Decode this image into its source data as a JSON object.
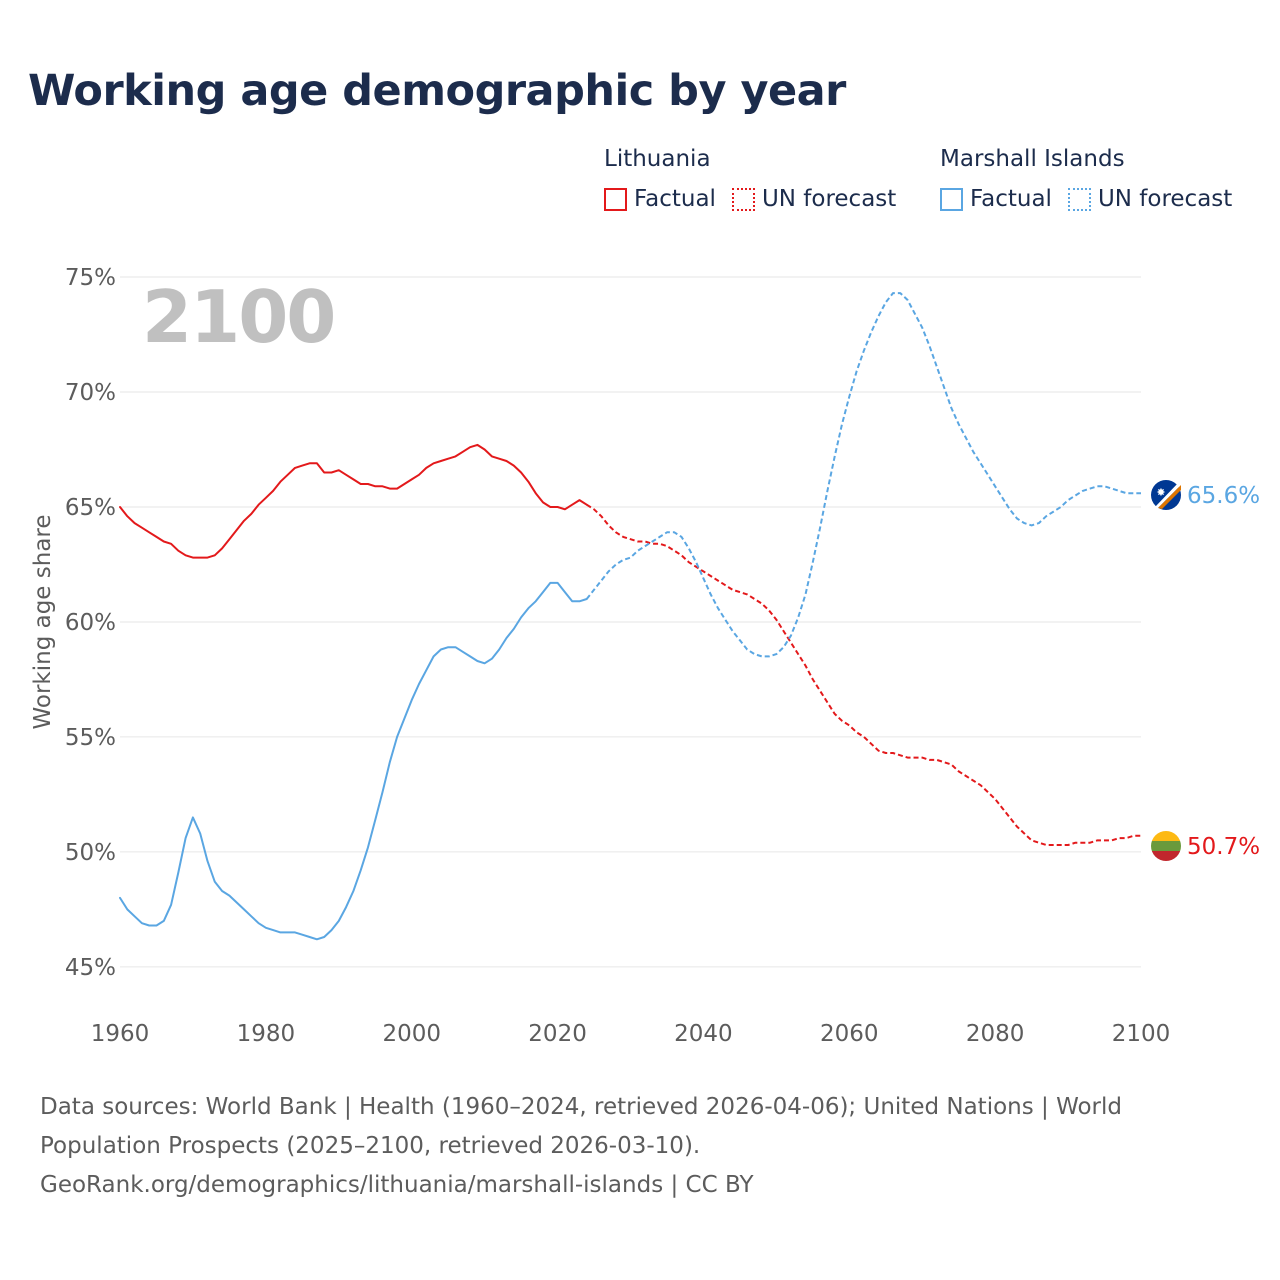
{
  "header": {
    "title": "Working age demographic by year"
  },
  "legend": [
    {
      "country": "Lithuania",
      "color": "#e3191b",
      "items": [
        {
          "label": "Factual",
          "style": "solid"
        },
        {
          "label": "UN forecast",
          "style": "dotted"
        }
      ]
    },
    {
      "country": "Marshall Islands",
      "color": "#5aa6e2",
      "items": [
        {
          "label": "Factual",
          "style": "solid"
        },
        {
          "label": "UN forecast",
          "style": "dotted"
        }
      ]
    }
  ],
  "footer": {
    "sources": "Data sources: World Bank | Health (1960–2024, retrieved 2026-04-06); United Nations | World Population Prospects (2025–2100, retrieved 2026-03-10).",
    "attribution": "GeoRank.org/demographics/lithuania/marshall-islands | CC BY"
  },
  "chart_data": {
    "type": "line",
    "title": "Working age demographic by year",
    "year_label": "2100",
    "xlabel": "",
    "ylabel": "Working age share",
    "xlim": [
      1960,
      2100
    ],
    "ylim": [
      44.3,
      75
    ],
    "x_ticks": [
      1960,
      1980,
      2000,
      2020,
      2040,
      2060,
      2080,
      2100
    ],
    "x_tick_labels": [
      "1960",
      "1980",
      "2000",
      "2020",
      "2040",
      "2060",
      "2080",
      "2100"
    ],
    "y_ticks": [
      45,
      50,
      55,
      60,
      65,
      70,
      75
    ],
    "y_tick_labels": [
      "45%",
      "50%",
      "55%",
      "60%",
      "65%",
      "70%",
      "75%"
    ],
    "grid": true,
    "series": [
      {
        "name": "Lithuania",
        "color": "#e3191b",
        "end_label": "50.7%",
        "factual": [
          [
            1960,
            65.0
          ],
          [
            1961,
            64.6
          ],
          [
            1962,
            64.3
          ],
          [
            1963,
            64.1
          ],
          [
            1964,
            63.9
          ],
          [
            1965,
            63.7
          ],
          [
            1966,
            63.5
          ],
          [
            1967,
            63.4
          ],
          [
            1968,
            63.1
          ],
          [
            1969,
            62.9
          ],
          [
            1970,
            62.8
          ],
          [
            1971,
            62.8
          ],
          [
            1972,
            62.8
          ],
          [
            1973,
            62.9
          ],
          [
            1974,
            63.2
          ],
          [
            1975,
            63.6
          ],
          [
            1976,
            64.0
          ],
          [
            1977,
            64.4
          ],
          [
            1978,
            64.7
          ],
          [
            1979,
            65.1
          ],
          [
            1980,
            65.4
          ],
          [
            1981,
            65.7
          ],
          [
            1982,
            66.1
          ],
          [
            1983,
            66.4
          ],
          [
            1984,
            66.7
          ],
          [
            1985,
            66.8
          ],
          [
            1986,
            66.9
          ],
          [
            1987,
            66.9
          ],
          [
            1988,
            66.5
          ],
          [
            1989,
            66.5
          ],
          [
            1990,
            66.6
          ],
          [
            1991,
            66.4
          ],
          [
            1992,
            66.2
          ],
          [
            1993,
            66.0
          ],
          [
            1994,
            66.0
          ],
          [
            1995,
            65.9
          ],
          [
            1996,
            65.9
          ],
          [
            1997,
            65.8
          ],
          [
            1998,
            65.8
          ],
          [
            1999,
            66.0
          ],
          [
            2000,
            66.2
          ],
          [
            2001,
            66.4
          ],
          [
            2002,
            66.7
          ],
          [
            2003,
            66.9
          ],
          [
            2004,
            67.0
          ],
          [
            2005,
            67.1
          ],
          [
            2006,
            67.2
          ],
          [
            2007,
            67.4
          ],
          [
            2008,
            67.6
          ],
          [
            2009,
            67.7
          ],
          [
            2010,
            67.5
          ],
          [
            2011,
            67.2
          ],
          [
            2012,
            67.1
          ],
          [
            2013,
            67.0
          ],
          [
            2014,
            66.8
          ],
          [
            2015,
            66.5
          ],
          [
            2016,
            66.1
          ],
          [
            2017,
            65.6
          ],
          [
            2018,
            65.2
          ],
          [
            2019,
            65.0
          ],
          [
            2020,
            65.0
          ],
          [
            2021,
            64.9
          ],
          [
            2022,
            65.1
          ],
          [
            2023,
            65.3
          ],
          [
            2024,
            65.1
          ]
        ],
        "forecast": [
          [
            2024,
            65.1
          ],
          [
            2025,
            64.9
          ],
          [
            2026,
            64.6
          ],
          [
            2027,
            64.2
          ],
          [
            2028,
            63.9
          ],
          [
            2029,
            63.7
          ],
          [
            2030,
            63.6
          ],
          [
            2031,
            63.5
          ],
          [
            2032,
            63.5
          ],
          [
            2033,
            63.4
          ],
          [
            2034,
            63.4
          ],
          [
            2035,
            63.3
          ],
          [
            2036,
            63.1
          ],
          [
            2037,
            62.9
          ],
          [
            2038,
            62.6
          ],
          [
            2039,
            62.4
          ],
          [
            2040,
            62.2
          ],
          [
            2041,
            62.0
          ],
          [
            2042,
            61.8
          ],
          [
            2043,
            61.6
          ],
          [
            2044,
            61.4
          ],
          [
            2045,
            61.3
          ],
          [
            2046,
            61.2
          ],
          [
            2047,
            61.0
          ],
          [
            2048,
            60.8
          ],
          [
            2049,
            60.5
          ],
          [
            2050,
            60.1
          ],
          [
            2051,
            59.6
          ],
          [
            2052,
            59.1
          ],
          [
            2053,
            58.6
          ],
          [
            2054,
            58.1
          ],
          [
            2055,
            57.5
          ],
          [
            2056,
            57.0
          ],
          [
            2057,
            56.5
          ],
          [
            2058,
            56.0
          ],
          [
            2059,
            55.7
          ],
          [
            2060,
            55.5
          ],
          [
            2061,
            55.2
          ],
          [
            2062,
            55.0
          ],
          [
            2063,
            54.7
          ],
          [
            2064,
            54.4
          ],
          [
            2065,
            54.3
          ],
          [
            2066,
            54.3
          ],
          [
            2067,
            54.2
          ],
          [
            2068,
            54.1
          ],
          [
            2069,
            54.1
          ],
          [
            2070,
            54.1
          ],
          [
            2071,
            54.0
          ],
          [
            2072,
            54.0
          ],
          [
            2073,
            53.9
          ],
          [
            2074,
            53.8
          ],
          [
            2075,
            53.5
          ],
          [
            2076,
            53.3
          ],
          [
            2077,
            53.1
          ],
          [
            2078,
            52.9
          ],
          [
            2079,
            52.6
          ],
          [
            2080,
            52.3
          ],
          [
            2081,
            51.9
          ],
          [
            2082,
            51.5
          ],
          [
            2083,
            51.1
          ],
          [
            2084,
            50.8
          ],
          [
            2085,
            50.5
          ],
          [
            2086,
            50.4
          ],
          [
            2087,
            50.3
          ],
          [
            2088,
            50.3
          ],
          [
            2089,
            50.3
          ],
          [
            2090,
            50.3
          ],
          [
            2091,
            50.4
          ],
          [
            2092,
            50.4
          ],
          [
            2093,
            50.4
          ],
          [
            2094,
            50.5
          ],
          [
            2095,
            50.5
          ],
          [
            2096,
            50.5
          ],
          [
            2097,
            50.6
          ],
          [
            2098,
            50.6
          ],
          [
            2099,
            50.7
          ],
          [
            2100,
            50.7
          ]
        ]
      },
      {
        "name": "Marshall Islands",
        "color": "#5aa6e2",
        "end_label": "65.6%",
        "factual": [
          [
            1960,
            48.0
          ],
          [
            1961,
            47.5
          ],
          [
            1962,
            47.2
          ],
          [
            1963,
            46.9
          ],
          [
            1964,
            46.8
          ],
          [
            1965,
            46.8
          ],
          [
            1966,
            47.0
          ],
          [
            1967,
            47.7
          ],
          [
            1968,
            49.1
          ],
          [
            1969,
            50.6
          ],
          [
            1970,
            51.5
          ],
          [
            1971,
            50.8
          ],
          [
            1972,
            49.6
          ],
          [
            1973,
            48.7
          ],
          [
            1974,
            48.3
          ],
          [
            1975,
            48.1
          ],
          [
            1976,
            47.8
          ],
          [
            1977,
            47.5
          ],
          [
            1978,
            47.2
          ],
          [
            1979,
            46.9
          ],
          [
            1980,
            46.7
          ],
          [
            1981,
            46.6
          ],
          [
            1982,
            46.5
          ],
          [
            1983,
            46.5
          ],
          [
            1984,
            46.5
          ],
          [
            1985,
            46.4
          ],
          [
            1986,
            46.3
          ],
          [
            1987,
            46.2
          ],
          [
            1988,
            46.3
          ],
          [
            1989,
            46.6
          ],
          [
            1990,
            47.0
          ],
          [
            1991,
            47.6
          ],
          [
            1992,
            48.3
          ],
          [
            1993,
            49.2
          ],
          [
            1994,
            50.2
          ],
          [
            1995,
            51.4
          ],
          [
            1996,
            52.6
          ],
          [
            1997,
            53.9
          ],
          [
            1998,
            55.0
          ],
          [
            1999,
            55.8
          ],
          [
            2000,
            56.6
          ],
          [
            2001,
            57.3
          ],
          [
            2002,
            57.9
          ],
          [
            2003,
            58.5
          ],
          [
            2004,
            58.8
          ],
          [
            2005,
            58.9
          ],
          [
            2006,
            58.9
          ],
          [
            2007,
            58.7
          ],
          [
            2008,
            58.5
          ],
          [
            2009,
            58.3
          ],
          [
            2010,
            58.2
          ],
          [
            2011,
            58.4
          ],
          [
            2012,
            58.8
          ],
          [
            2013,
            59.3
          ],
          [
            2014,
            59.7
          ],
          [
            2015,
            60.2
          ],
          [
            2016,
            60.6
          ],
          [
            2017,
            60.9
          ],
          [
            2018,
            61.3
          ],
          [
            2019,
            61.7
          ],
          [
            2020,
            61.7
          ],
          [
            2021,
            61.3
          ],
          [
            2022,
            60.9
          ],
          [
            2023,
            60.9
          ],
          [
            2024,
            61.0
          ]
        ],
        "forecast": [
          [
            2024,
            61.0
          ],
          [
            2025,
            61.4
          ],
          [
            2026,
            61.8
          ],
          [
            2027,
            62.2
          ],
          [
            2028,
            62.5
          ],
          [
            2029,
            62.7
          ],
          [
            2030,
            62.8
          ],
          [
            2031,
            63.1
          ],
          [
            2032,
            63.3
          ],
          [
            2033,
            63.5
          ],
          [
            2034,
            63.7
          ],
          [
            2035,
            63.9
          ],
          [
            2036,
            63.9
          ],
          [
            2037,
            63.7
          ],
          [
            2038,
            63.2
          ],
          [
            2039,
            62.6
          ],
          [
            2040,
            61.9
          ],
          [
            2041,
            61.2
          ],
          [
            2042,
            60.6
          ],
          [
            2043,
            60.1
          ],
          [
            2044,
            59.6
          ],
          [
            2045,
            59.2
          ],
          [
            2046,
            58.8
          ],
          [
            2047,
            58.6
          ],
          [
            2048,
            58.5
          ],
          [
            2049,
            58.5
          ],
          [
            2050,
            58.6
          ],
          [
            2051,
            58.9
          ],
          [
            2052,
            59.4
          ],
          [
            2053,
            60.2
          ],
          [
            2054,
            61.2
          ],
          [
            2055,
            62.6
          ],
          [
            2056,
            64.1
          ],
          [
            2057,
            65.7
          ],
          [
            2058,
            67.2
          ],
          [
            2059,
            68.6
          ],
          [
            2060,
            69.8
          ],
          [
            2061,
            70.9
          ],
          [
            2062,
            71.8
          ],
          [
            2063,
            72.6
          ],
          [
            2064,
            73.3
          ],
          [
            2065,
            73.9
          ],
          [
            2066,
            74.3
          ],
          [
            2067,
            74.3
          ],
          [
            2068,
            74.0
          ],
          [
            2069,
            73.4
          ],
          [
            2070,
            72.8
          ],
          [
            2071,
            72.0
          ],
          [
            2072,
            71.1
          ],
          [
            2073,
            70.2
          ],
          [
            2074,
            69.3
          ],
          [
            2075,
            68.6
          ],
          [
            2076,
            68.0
          ],
          [
            2077,
            67.4
          ],
          [
            2078,
            66.9
          ],
          [
            2079,
            66.4
          ],
          [
            2080,
            65.9
          ],
          [
            2081,
            65.4
          ],
          [
            2082,
            64.9
          ],
          [
            2083,
            64.5
          ],
          [
            2084,
            64.3
          ],
          [
            2085,
            64.2
          ],
          [
            2086,
            64.3
          ],
          [
            2087,
            64.6
          ],
          [
            2088,
            64.8
          ],
          [
            2089,
            65.0
          ],
          [
            2090,
            65.3
          ],
          [
            2091,
            65.5
          ],
          [
            2092,
            65.7
          ],
          [
            2093,
            65.8
          ],
          [
            2094,
            65.9
          ],
          [
            2095,
            65.9
          ],
          [
            2096,
            65.8
          ],
          [
            2097,
            65.7
          ],
          [
            2098,
            65.6
          ],
          [
            2099,
            65.6
          ],
          [
            2100,
            65.6
          ]
        ]
      }
    ]
  }
}
